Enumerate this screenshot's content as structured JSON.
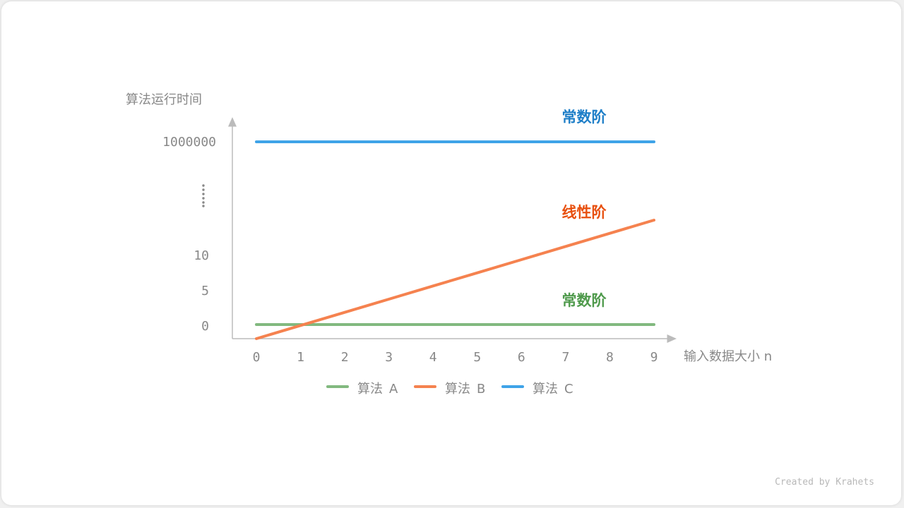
{
  "chart_data": {
    "type": "line",
    "title": "",
    "ylabel": "算法运行时间",
    "xlabel": "输入数据大小 n",
    "x": [
      0,
      1,
      2,
      3,
      4,
      5,
      6,
      7,
      8,
      9
    ],
    "x_tick_labels": [
      "0",
      "1",
      "2",
      "3",
      "4",
      "5",
      "6",
      "7",
      "8",
      "9"
    ],
    "y_ticks": [
      0,
      5,
      10
    ],
    "y_tick_labels": [
      "0",
      "5",
      "10"
    ],
    "y_break_label": "1000000",
    "y_break_symbol": "⋮",
    "ylim": [
      0,
      20
    ],
    "axis_broken": true,
    "grid": false,
    "legend_position": "bottom",
    "series": [
      {
        "name": "算法 A",
        "color": "#82b97f",
        "values": [
          2,
          2,
          2,
          2,
          2,
          2,
          2,
          2,
          2,
          2
        ],
        "annotation": "常数阶",
        "annotation_color": "#4f9a4c"
      },
      {
        "name": "算法 B",
        "color": "#f5824f",
        "values": [
          0,
          1.87,
          3.73,
          5.6,
          7.47,
          9.33,
          11.2,
          13.07,
          14.93,
          16.8
        ],
        "annotation": "线性阶",
        "annotation_color": "#e8500f"
      },
      {
        "name": "算法 C",
        "color": "#3fa3e8",
        "values": [
          1000000,
          1000000,
          1000000,
          1000000,
          1000000,
          1000000,
          1000000,
          1000000,
          1000000,
          1000000
        ],
        "annotation": "常数阶",
        "annotation_color": "#1f7fc8"
      }
    ]
  },
  "credit": "Created by Krahets"
}
